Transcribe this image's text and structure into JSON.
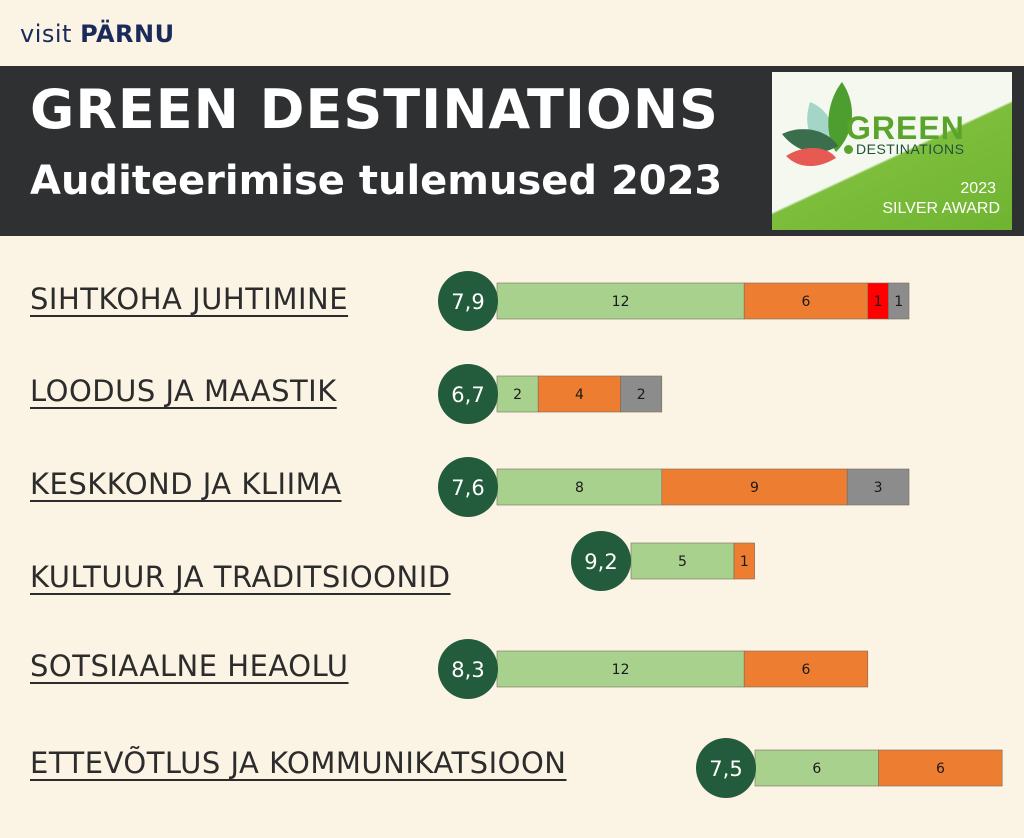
{
  "header": {
    "logo_visit": "visit",
    "logo_parnu": "PÄRNU",
    "title": "GREEN DESTINATIONS",
    "subtitle": "Auditeerimise tulemused 2023"
  },
  "badge": {
    "word1": "GREEN",
    "word2": "DESTINATIONS",
    "year": "2023",
    "award": "SILVER AWARD"
  },
  "colors": {
    "background": "#fbf4e4",
    "banner": "#2f3032",
    "green": "#a9d18e",
    "orange": "#ed7d31",
    "red": "#ff0000",
    "gray": "#8c8c8c",
    "circle": "#225c3c"
  },
  "chart_data": {
    "type": "bar",
    "orientation": "horizontal-stacked",
    "categories": [
      "SIHTKOHA JUHTIMINE",
      "LOODUS JA MAASTIK",
      "KESKKOND JA KLIIMA",
      "KULTUUR JA TRADITSIOONID",
      "SOTSIAALNE HEAOLU",
      "ETTEVÕTLUS JA KOMMUNIKATSIOON"
    ],
    "scores": [
      "7,9",
      "6,7",
      "7,6",
      "9,2",
      "8,3",
      "7,5"
    ],
    "series": [
      {
        "color": "#a9d18e",
        "values": [
          12,
          2,
          8,
          5,
          12,
          6
        ]
      },
      {
        "color": "#ed7d31",
        "values": [
          6,
          4,
          9,
          1,
          6,
          6
        ]
      },
      {
        "color": "#ff0000",
        "values": [
          1,
          0,
          0,
          0,
          0,
          0
        ]
      },
      {
        "color": "#8c8c8c",
        "values": [
          1,
          2,
          3,
          0,
          0,
          0
        ]
      }
    ]
  }
}
